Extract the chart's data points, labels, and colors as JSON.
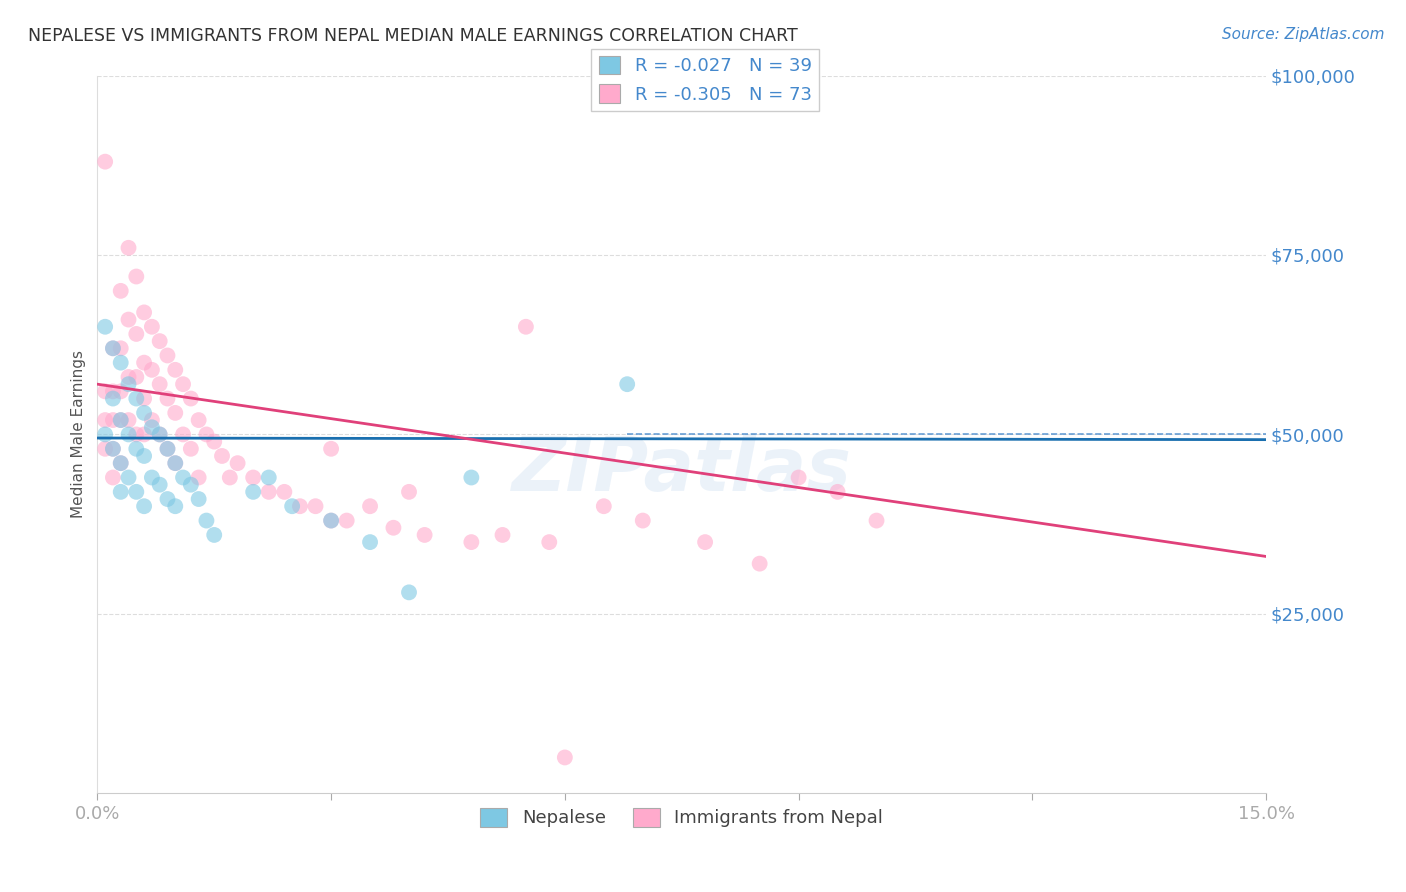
{
  "title": "NEPALESE VS IMMIGRANTS FROM NEPAL MEDIAN MALE EARNINGS CORRELATION CHART",
  "source": "Source: ZipAtlas.com",
  "ylabel": "Median Male Earnings",
  "legend_label1": "Nepalese",
  "legend_label2": "Immigrants from Nepal",
  "r1": "-0.027",
  "n1": "39",
  "r2": "-0.305",
  "n2": "73",
  "watermark": "ZIPatlas",
  "color_blue": "#7ec8e3",
  "color_pink": "#ffaacc",
  "line_blue": "#1a6faf",
  "line_pink": "#e0407a",
  "axis_color": "#4488cc",
  "title_color": "#333333",
  "xlim": [
    0.0,
    0.15
  ],
  "ylim": [
    0,
    100000
  ],
  "nepalese_x": [
    0.001,
    0.001,
    0.002,
    0.002,
    0.002,
    0.003,
    0.003,
    0.003,
    0.003,
    0.004,
    0.004,
    0.004,
    0.005,
    0.005,
    0.005,
    0.006,
    0.006,
    0.006,
    0.007,
    0.007,
    0.008,
    0.008,
    0.009,
    0.009,
    0.01,
    0.01,
    0.011,
    0.012,
    0.013,
    0.014,
    0.015,
    0.02,
    0.022,
    0.025,
    0.03,
    0.035,
    0.04,
    0.048,
    0.068
  ],
  "nepalese_y": [
    65000,
    50000,
    62000,
    55000,
    48000,
    60000,
    52000,
    46000,
    42000,
    57000,
    50000,
    44000,
    55000,
    48000,
    42000,
    53000,
    47000,
    40000,
    51000,
    44000,
    50000,
    43000,
    48000,
    41000,
    46000,
    40000,
    44000,
    43000,
    41000,
    38000,
    36000,
    42000,
    44000,
    40000,
    38000,
    35000,
    28000,
    44000,
    57000
  ],
  "immigrants_x": [
    0.001,
    0.001,
    0.001,
    0.001,
    0.002,
    0.002,
    0.002,
    0.002,
    0.002,
    0.003,
    0.003,
    0.003,
    0.003,
    0.003,
    0.004,
    0.004,
    0.004,
    0.004,
    0.005,
    0.005,
    0.005,
    0.005,
    0.006,
    0.006,
    0.006,
    0.006,
    0.007,
    0.007,
    0.007,
    0.008,
    0.008,
    0.008,
    0.009,
    0.009,
    0.009,
    0.01,
    0.01,
    0.01,
    0.011,
    0.011,
    0.012,
    0.012,
    0.013,
    0.013,
    0.014,
    0.015,
    0.016,
    0.017,
    0.018,
    0.02,
    0.022,
    0.024,
    0.026,
    0.028,
    0.03,
    0.032,
    0.035,
    0.038,
    0.042,
    0.048,
    0.052,
    0.058,
    0.06,
    0.065,
    0.07,
    0.078,
    0.085,
    0.09,
    0.095,
    0.1,
    0.055,
    0.04,
    0.03
  ],
  "immigrants_y": [
    56000,
    52000,
    48000,
    88000,
    62000,
    56000,
    52000,
    48000,
    44000,
    70000,
    62000,
    56000,
    52000,
    46000,
    76000,
    66000,
    58000,
    52000,
    72000,
    64000,
    58000,
    50000,
    67000,
    60000,
    55000,
    50000,
    65000,
    59000,
    52000,
    63000,
    57000,
    50000,
    61000,
    55000,
    48000,
    59000,
    53000,
    46000,
    57000,
    50000,
    55000,
    48000,
    52000,
    44000,
    50000,
    49000,
    47000,
    44000,
    46000,
    44000,
    42000,
    42000,
    40000,
    40000,
    38000,
    38000,
    40000,
    37000,
    36000,
    35000,
    36000,
    35000,
    5000,
    40000,
    38000,
    35000,
    32000,
    44000,
    42000,
    38000,
    65000,
    42000,
    48000
  ]
}
